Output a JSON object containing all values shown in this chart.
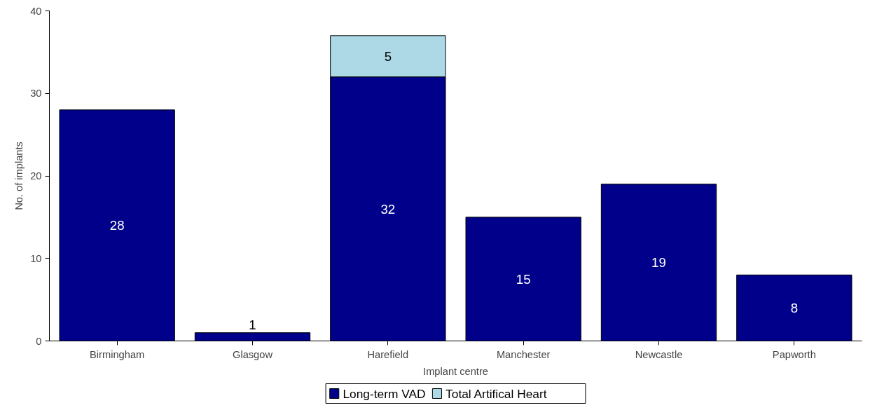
{
  "chart_data": {
    "type": "bar",
    "xlabel": "Implant centre",
    "ylabel": "No. of implants",
    "categories": [
      "Birmingham",
      "Glasgow",
      "Harefield",
      "Manchester",
      "Newcastle",
      "Papworth"
    ],
    "stacked": true,
    "series": [
      {
        "name": "Long-term VAD",
        "color": "#00008b",
        "values": [
          28,
          1,
          32,
          15,
          19,
          8
        ]
      },
      {
        "name": "Total Artifical Heart",
        "color": "#add8e6",
        "values": [
          null,
          null,
          5,
          null,
          null,
          null
        ]
      }
    ],
    "ylim": [
      0,
      40
    ],
    "yticks": [
      0,
      10,
      20,
      30,
      40
    ],
    "grid": false,
    "legend": "bottom",
    "data_labels": true
  }
}
